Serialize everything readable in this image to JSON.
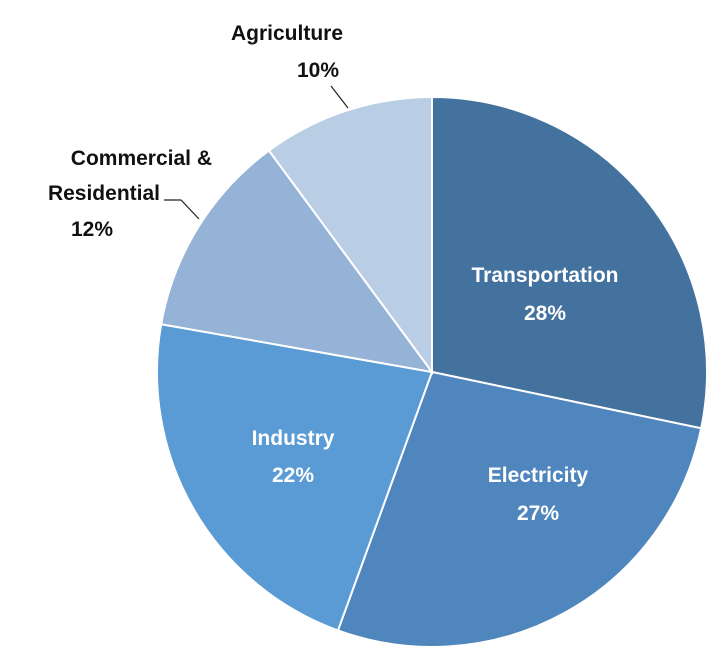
{
  "chart_data": {
    "type": "pie",
    "title": "",
    "start_angle": "12 o'clock",
    "direction": "clockwise",
    "slices": [
      {
        "label": "Transportation",
        "value": 28,
        "value_label": "28%",
        "color": "#44729e"
      },
      {
        "label": "Electricity",
        "value": 27,
        "value_label": "27%",
        "color": "#4f86bd"
      },
      {
        "label": "Industry",
        "value": 22,
        "value_label": "22%",
        "color": "#5b9bd5"
      },
      {
        "label": "Commercial & Residential",
        "label_lines": [
          "Commercial &",
          "Residential"
        ],
        "value": 12,
        "value_label": "12%",
        "color": "#95b3d7"
      },
      {
        "label": "Agriculture",
        "value": 10,
        "value_label": "10%",
        "color": "#b9cde5"
      }
    ]
  }
}
